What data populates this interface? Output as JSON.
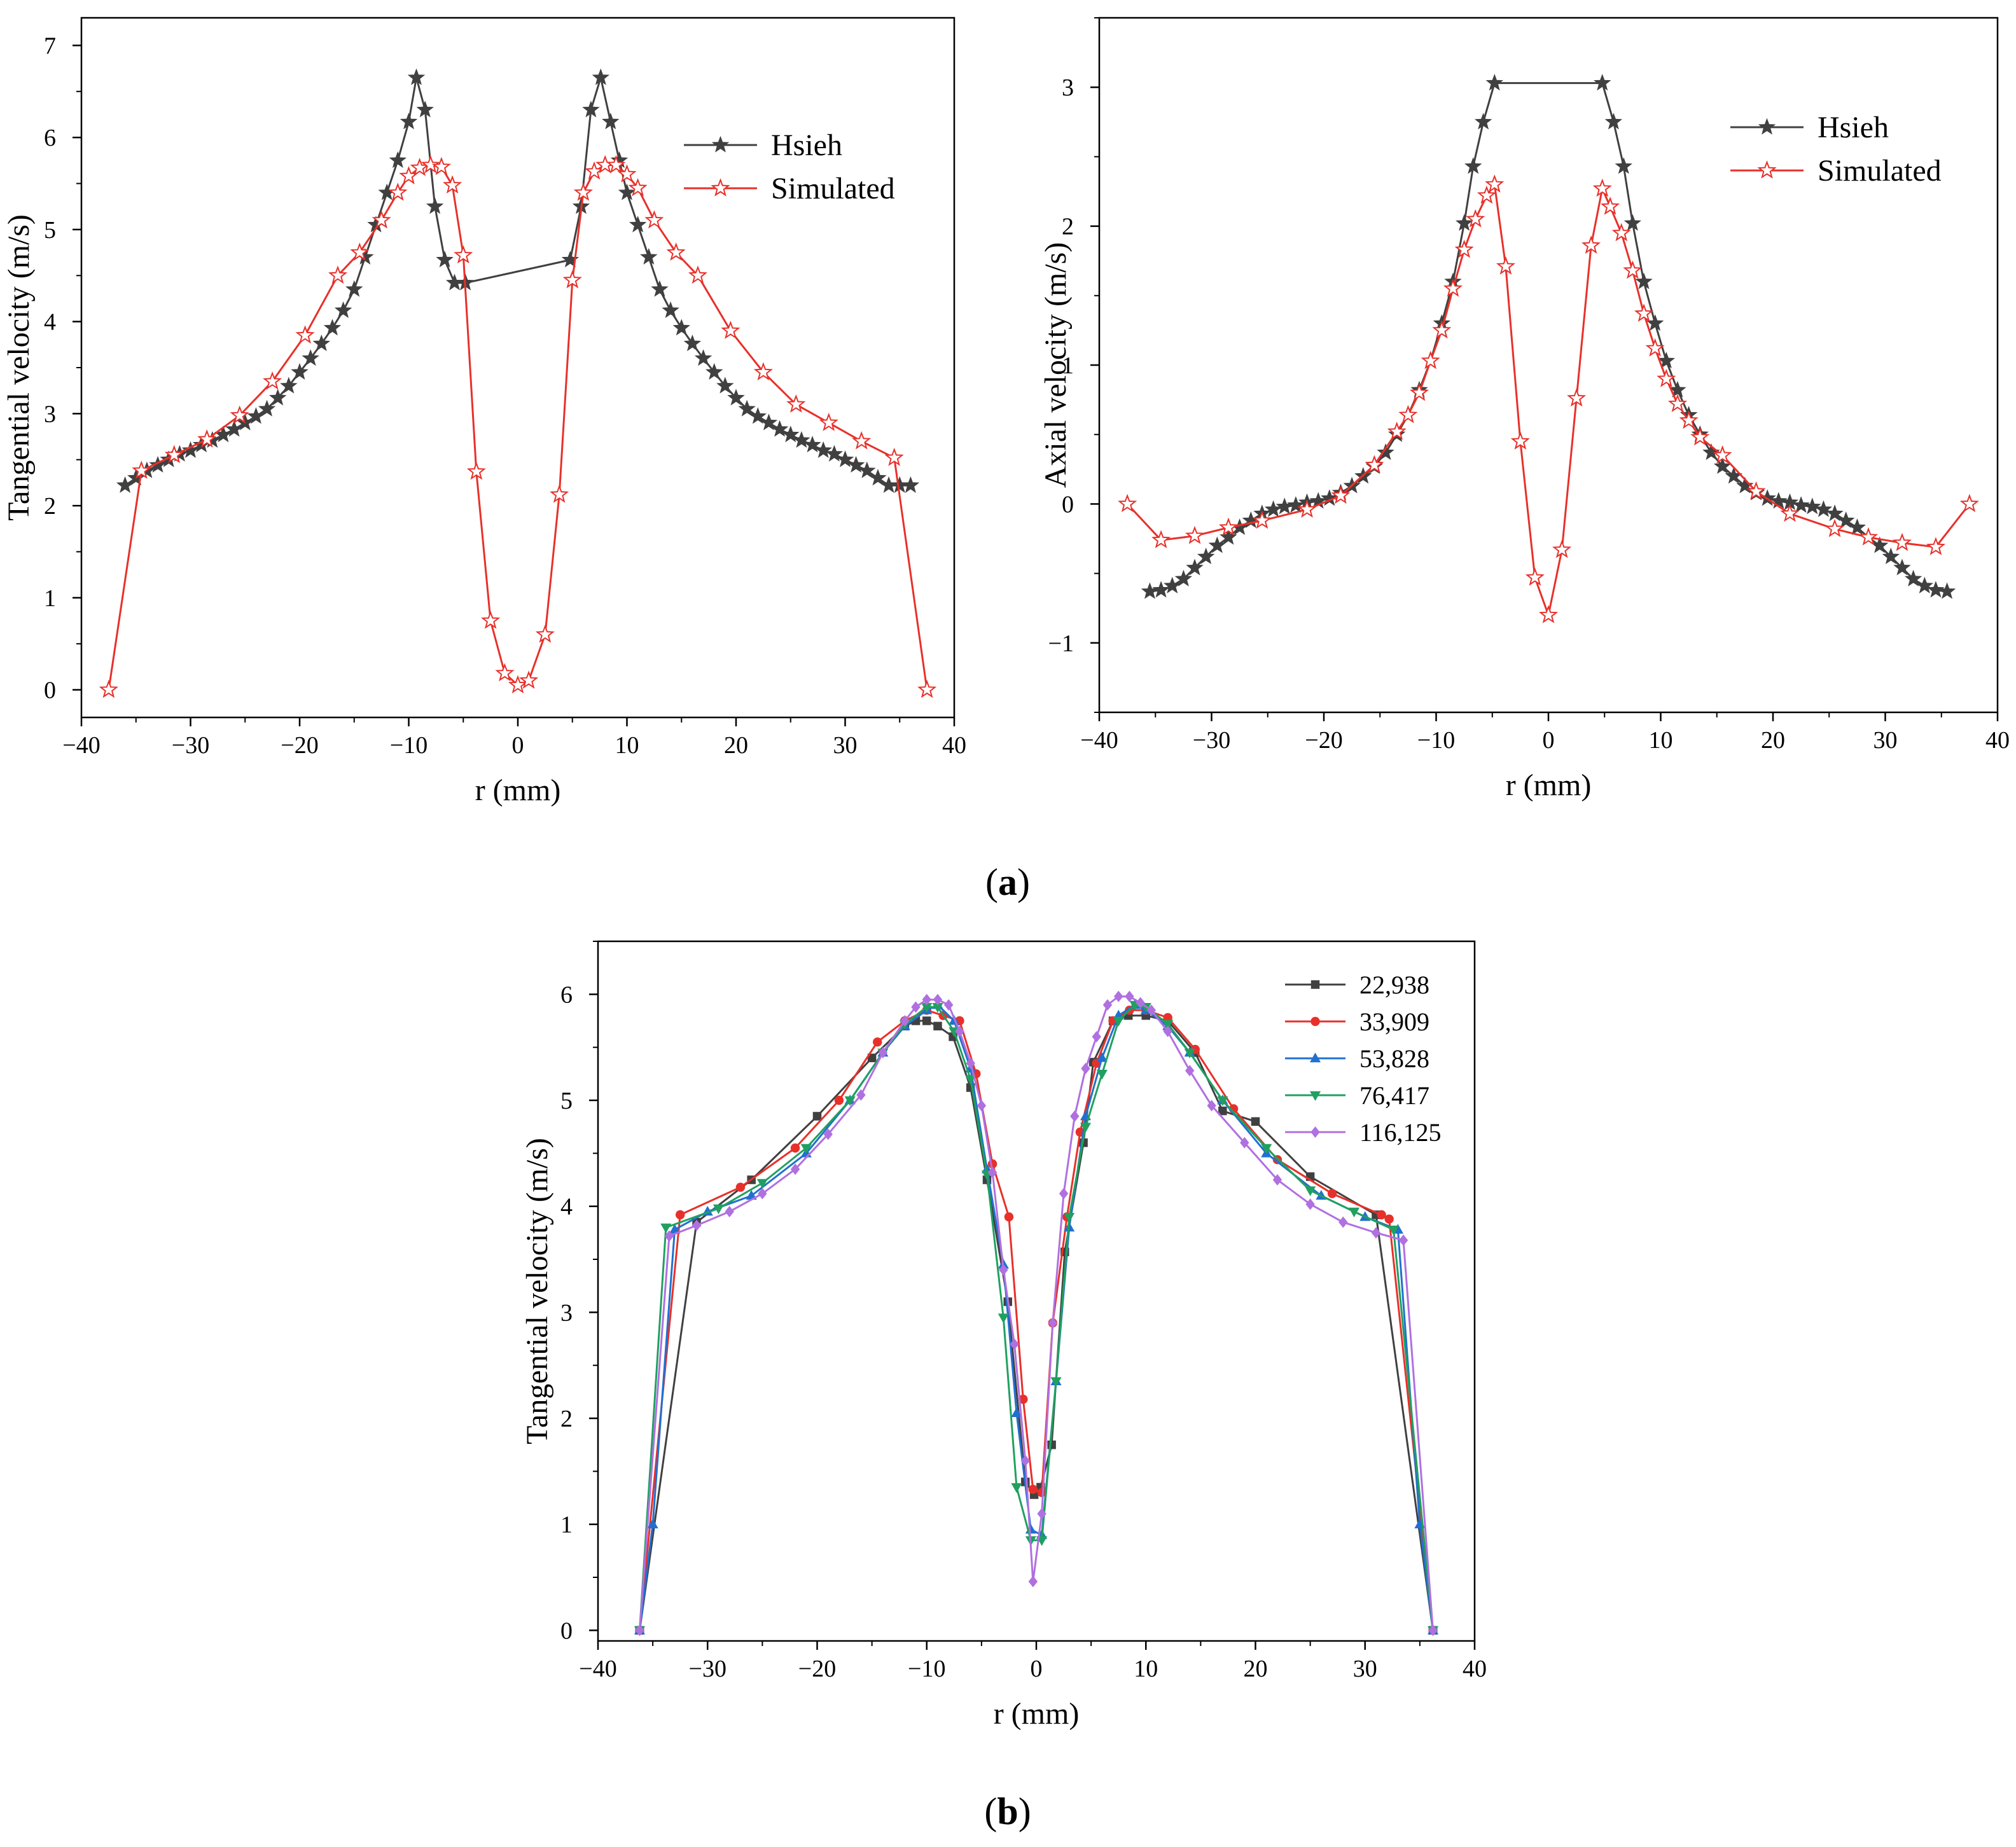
{
  "panels": [
    {
      "label": "(",
      "letter": "a",
      "close": ")"
    },
    {
      "label": "(",
      "letter": "b",
      "close": ")"
    }
  ],
  "chart_data": [
    {
      "type": "line",
      "title": "",
      "xlabel": "r (mm)",
      "ylabel": "Tangential velocity (m/s)",
      "xlim": [
        -40,
        40
      ],
      "ylim": [
        -0.3,
        7.3
      ],
      "xticks": [
        -40,
        -30,
        -20,
        -10,
        0,
        10,
        20,
        30,
        40
      ],
      "yticks": [
        0,
        1,
        2,
        3,
        4,
        5,
        6,
        7
      ],
      "xtick_labels": [
        "−40",
        "−30",
        "−20",
        "−10",
        "0",
        "10",
        "20",
        "30",
        "40"
      ],
      "ytick_labels": [
        "0",
        "1",
        "2",
        "3",
        "4",
        "5",
        "6",
        "7"
      ],
      "legend": "top-right",
      "series": [
        {
          "name": "Hsieh",
          "color": "#404040",
          "marker": "star-filled",
          "x": [
            -36,
            -35,
            -34,
            -33,
            -32,
            -31,
            -30,
            -29,
            -28,
            -27,
            -26,
            -25,
            -24,
            -23,
            -22,
            -21,
            -20,
            -19,
            -18,
            -17,
            -16,
            -15,
            -14,
            -13,
            -12,
            -11,
            -10,
            -9.3,
            -8.5,
            -7.6,
            -6.7,
            -5.8,
            -4.8,
            4.8,
            5.8,
            6.7,
            7.6,
            8.5,
            9.3,
            10,
            11,
            12,
            13,
            14,
            15,
            16,
            17,
            18,
            19,
            20,
            21,
            22,
            23,
            24,
            25,
            26,
            27,
            28,
            29,
            30,
            31,
            32,
            33,
            34,
            35,
            36
          ],
          "y": [
            2.22,
            2.3,
            2.38,
            2.44,
            2.5,
            2.56,
            2.6,
            2.66,
            2.71,
            2.77,
            2.83,
            2.9,
            2.97,
            3.05,
            3.17,
            3.3,
            3.45,
            3.6,
            3.76,
            3.93,
            4.12,
            4.35,
            4.7,
            5.05,
            5.4,
            5.75,
            6.17,
            6.65,
            6.3,
            5.25,
            4.67,
            4.42,
            4.42,
            4.67,
            5.25,
            6.3,
            6.65,
            6.17,
            5.75,
            5.4,
            5.05,
            4.7,
            4.35,
            4.12,
            3.93,
            3.76,
            3.6,
            3.45,
            3.3,
            3.17,
            3.05,
            2.97,
            2.9,
            2.83,
            2.77,
            2.71,
            2.66,
            2.6,
            2.56,
            2.5,
            2.44,
            2.38,
            2.3,
            2.22,
            2.22,
            2.22
          ]
        },
        {
          "name": "Simulated",
          "color": "#e8302a",
          "marker": "star-open",
          "x": [
            -37.5,
            -34.5,
            -31.5,
            -28.5,
            -25.5,
            -22.5,
            -19.5,
            -16.5,
            -14.5,
            -12.5,
            -11,
            -10,
            -9,
            -8,
            -7,
            -6,
            -5,
            -3.8,
            -2.5,
            -1.2,
            0,
            1,
            2.5,
            3.8,
            5,
            6,
            7,
            8,
            9,
            10,
            11,
            12.5,
            14.5,
            16.5,
            19.5,
            22.5,
            25.5,
            28.5,
            31.5,
            34.5,
            37.5
          ],
          "y": [
            0,
            2.38,
            2.55,
            2.72,
            2.98,
            3.35,
            3.85,
            4.5,
            4.75,
            5.1,
            5.4,
            5.58,
            5.67,
            5.7,
            5.68,
            5.48,
            4.72,
            2.37,
            0.75,
            0.18,
            0.05,
            0.1,
            0.6,
            2.12,
            4.45,
            5.4,
            5.63,
            5.7,
            5.7,
            5.6,
            5.45,
            5.1,
            4.75,
            4.5,
            3.9,
            3.45,
            3.1,
            2.9,
            2.7,
            2.52,
            0
          ]
        }
      ]
    },
    {
      "type": "line",
      "title": "",
      "xlabel": "r (mm)",
      "ylabel": "Axial velocity (m/s)",
      "xlim": [
        -40,
        40
      ],
      "ylim": [
        -1.5,
        3.5
      ],
      "xticks": [
        -40,
        -30,
        -20,
        -10,
        0,
        10,
        20,
        30,
        40
      ],
      "yticks": [
        -1,
        0,
        1,
        2,
        3
      ],
      "xtick_labels": [
        "−40",
        "−30",
        "−20",
        "−10",
        "0",
        "10",
        "20",
        "30",
        "40"
      ],
      "ytick_labels": [
        "−1",
        "0",
        "1",
        "2",
        "3"
      ],
      "legend": "top-right",
      "series": [
        {
          "name": "Hsieh",
          "color": "#404040",
          "marker": "star-filled",
          "x": [
            -35.5,
            -34.5,
            -33.5,
            -32.5,
            -31.5,
            -30.5,
            -29.5,
            -28.5,
            -27.5,
            -26.5,
            -25.5,
            -24.5,
            -23.5,
            -22.5,
            -21.5,
            -20.5,
            -19.5,
            -18.5,
            -17.5,
            -16.5,
            -15.5,
            -14.5,
            -13.5,
            -12.5,
            -11.5,
            -10.5,
            -9.5,
            -8.5,
            -7.5,
            -6.7,
            -5.8,
            -4.8,
            4.8,
            5.8,
            6.7,
            7.5,
            8.5,
            9.5,
            10.5,
            11.5,
            12.5,
            13.5,
            14.5,
            15.5,
            16.5,
            17.5,
            18.5,
            19.5,
            20.5,
            21.5,
            22.5,
            23.5,
            24.5,
            25.5,
            26.5,
            27.5,
            28.5,
            29.5,
            30.5,
            31.5,
            32.5,
            33.5,
            34.5,
            35.5
          ],
          "y": [
            -0.63,
            -0.62,
            -0.59,
            -0.54,
            -0.46,
            -0.38,
            -0.3,
            -0.24,
            -0.17,
            -0.12,
            -0.07,
            -0.04,
            -0.02,
            -0.01,
            0.01,
            0.02,
            0.04,
            0.08,
            0.13,
            0.2,
            0.27,
            0.37,
            0.5,
            0.64,
            0.82,
            1.03,
            1.3,
            1.6,
            2.02,
            2.43,
            2.75,
            3.03,
            3.03,
            2.75,
            2.43,
            2.02,
            1.6,
            1.3,
            1.03,
            0.82,
            0.64,
            0.5,
            0.37,
            0.27,
            0.2,
            0.13,
            0.08,
            0.04,
            0.02,
            0.01,
            -0.01,
            -0.02,
            -0.04,
            -0.07,
            -0.12,
            -0.17,
            -0.24,
            -0.3,
            -0.38,
            -0.46,
            -0.54,
            -0.59,
            -0.62,
            -0.63
          ]
        },
        {
          "name": "Simulated",
          "color": "#e8302a",
          "marker": "star-open",
          "x": [
            -37.5,
            -34.5,
            -31.5,
            -28.5,
            -25.5,
            -21.5,
            -18.5,
            -15.5,
            -13.5,
            -12.5,
            -11.5,
            -10.5,
            -9.5,
            -8.5,
            -7.5,
            -6.5,
            -5.5,
            -4.8,
            -3.8,
            -2.5,
            -1.2,
            0,
            1.2,
            2.5,
            3.8,
            4.8,
            5.5,
            6.5,
            7.5,
            8.5,
            9.5,
            10.5,
            11.5,
            12.5,
            13.5,
            15.5,
            18.5,
            21.5,
            25.5,
            28.5,
            31.5,
            34.5,
            37.5
          ],
          "y": [
            0,
            -0.26,
            -0.23,
            -0.17,
            -0.12,
            -0.04,
            0.06,
            0.28,
            0.52,
            0.64,
            0.8,
            1.03,
            1.25,
            1.55,
            1.83,
            2.05,
            2.22,
            2.3,
            1.71,
            0.45,
            -0.53,
            -0.8,
            -0.33,
            0.76,
            1.86,
            2.27,
            2.14,
            1.95,
            1.68,
            1.37,
            1.12,
            0.9,
            0.72,
            0.6,
            0.48,
            0.35,
            0.09,
            -0.07,
            -0.18,
            -0.24,
            -0.28,
            -0.31,
            0
          ]
        }
      ]
    },
    {
      "type": "line",
      "title": "",
      "xlabel": "r (mm)",
      "ylabel": "Tangential velocity (m/s)",
      "xlim": [
        -40,
        40
      ],
      "ylim": [
        -0.1,
        6.5
      ],
      "xticks": [
        -40,
        -30,
        -20,
        -10,
        0,
        10,
        20,
        30,
        40
      ],
      "yticks": [
        0,
        1,
        2,
        3,
        4,
        5,
        6
      ],
      "xtick_labels": [
        "−40",
        "−30",
        "−20",
        "−10",
        "0",
        "10",
        "20",
        "30",
        "40"
      ],
      "ytick_labels": [
        "0",
        "1",
        "2",
        "3",
        "4",
        "5",
        "6"
      ],
      "legend": "top-right",
      "series": [
        {
          "name": "22,938",
          "color": "#404040",
          "marker": "square",
          "x": [
            -36.2,
            -31,
            -26,
            -20,
            -15,
            -12,
            -11,
            -10,
            -9,
            -7.6,
            -6,
            -4.5,
            -2.6,
            -1,
            -0.2,
            0.4,
            1.4,
            2.6,
            4.3,
            5.2,
            7,
            8.4,
            10,
            12,
            14.5,
            17,
            20,
            25,
            31,
            36.2
          ],
          "y": [
            0,
            3.85,
            4.25,
            4.85,
            5.4,
            5.7,
            5.75,
            5.75,
            5.7,
            5.6,
            5.12,
            4.25,
            3.1,
            1.4,
            1.28,
            1.35,
            1.75,
            3.57,
            4.6,
            5.36,
            5.75,
            5.8,
            5.8,
            5.75,
            5.45,
            4.9,
            4.8,
            4.28,
            3.92,
            0
          ]
        },
        {
          "name": "33,909",
          "color": "#e8302a",
          "marker": "circle",
          "x": [
            -36.2,
            -32.5,
            -27,
            -22,
            -18,
            -14.5,
            -12,
            -10,
            -8.5,
            -7,
            -5.5,
            -4,
            -2.5,
            -1.2,
            -0.3,
            0.5,
            1.5,
            2.8,
            4,
            5.5,
            7,
            8.5,
            10,
            12,
            14.5,
            18,
            22,
            27,
            31.5,
            32.2,
            36.2
          ],
          "y": [
            0,
            3.92,
            4.18,
            4.55,
            5.0,
            5.55,
            5.75,
            5.85,
            5.8,
            5.75,
            5.25,
            4.4,
            3.9,
            2.18,
            1.33,
            1.3,
            2.9,
            3.9,
            4.7,
            5.35,
            5.75,
            5.85,
            5.85,
            5.78,
            5.48,
            4.92,
            4.44,
            4.12,
            3.92,
            3.88,
            0
          ]
        },
        {
          "name": "53,828",
          "color": "#2070d0",
          "marker": "triangle-up",
          "x": [
            -36.2,
            -35,
            -33,
            -30,
            -26,
            -21,
            -17,
            -14,
            -12,
            -10,
            -9,
            -7.5,
            -6,
            -4.5,
            -3,
            -1.8,
            -0.5,
            0.5,
            1.8,
            3,
            4.5,
            6,
            7.5,
            9,
            10,
            12,
            14,
            17,
            21,
            26,
            30,
            33,
            35,
            36.2
          ],
          "y": [
            0,
            1.0,
            3.78,
            3.95,
            4.1,
            4.5,
            5.0,
            5.45,
            5.7,
            5.85,
            5.9,
            5.75,
            5.3,
            4.35,
            3.45,
            2.05,
            0.95,
            0.9,
            2.35,
            3.8,
            4.85,
            5.4,
            5.8,
            5.9,
            5.85,
            5.7,
            5.45,
            5.0,
            4.5,
            4.1,
            3.9,
            3.78,
            1.0,
            0
          ]
        },
        {
          "name": "76,417",
          "color": "#20a060",
          "marker": "triangle-down",
          "x": [
            -36.2,
            -33.8,
            -29,
            -25,
            -21,
            -17,
            -14,
            -12,
            -10,
            -9,
            -7.5,
            -6,
            -4.5,
            -3,
            -1.8,
            -0.5,
            0.5,
            1.8,
            3,
            4.5,
            6,
            7.5,
            9,
            10,
            12,
            14,
            17,
            21,
            25,
            29,
            32.6,
            36.2
          ],
          "y": [
            0,
            3.8,
            3.98,
            4.22,
            4.55,
            5.0,
            5.45,
            5.72,
            5.88,
            5.88,
            5.65,
            5.2,
            4.3,
            2.95,
            1.35,
            0.85,
            0.85,
            2.35,
            3.9,
            4.75,
            5.25,
            5.75,
            5.9,
            5.88,
            5.72,
            5.45,
            5.0,
            4.55,
            4.15,
            3.95,
            3.78,
            0
          ]
        },
        {
          "name": "116,125",
          "color": "#b070e0",
          "marker": "diamond",
          "x": [
            -36.2,
            -33.5,
            -31,
            -28,
            -25,
            -22,
            -19,
            -16,
            -14,
            -12,
            -11,
            -10,
            -9,
            -8,
            -7,
            -6,
            -5,
            -4,
            -3,
            -2,
            -1,
            -0.3,
            0.5,
            1.5,
            2.5,
            3.5,
            4.5,
            5.5,
            6.5,
            7.5,
            8.5,
            9.5,
            10.5,
            12,
            14,
            16,
            19,
            22,
            25,
            28,
            31,
            33.5,
            36.2
          ],
          "y": [
            0,
            3.72,
            3.82,
            3.95,
            4.12,
            4.35,
            4.68,
            5.05,
            5.45,
            5.75,
            5.88,
            5.95,
            5.95,
            5.9,
            5.65,
            5.35,
            4.95,
            4.32,
            3.4,
            2.7,
            1.6,
            0.46,
            1.1,
            2.9,
            4.12,
            4.85,
            5.3,
            5.6,
            5.9,
            5.98,
            5.98,
            5.92,
            5.85,
            5.65,
            5.28,
            4.95,
            4.6,
            4.25,
            4.02,
            3.85,
            3.75,
            3.68,
            0
          ]
        }
      ]
    }
  ]
}
